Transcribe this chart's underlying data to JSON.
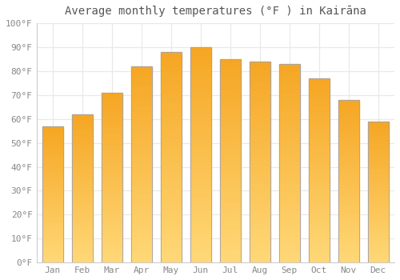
{
  "title": "Average monthly temperatures (°F ) in Kairāna",
  "months": [
    "Jan",
    "Feb",
    "Mar",
    "Apr",
    "May",
    "Jun",
    "Jul",
    "Aug",
    "Sep",
    "Oct",
    "Nov",
    "Dec"
  ],
  "values": [
    57,
    62,
    71,
    82,
    88,
    90,
    85,
    84,
    83,
    77,
    68,
    59
  ],
  "bar_color_top": "#F5A623",
  "bar_color_bottom": "#FFD878",
  "bar_border_color": "#a0a0b0",
  "ylim": [
    0,
    100
  ],
  "yticks": [
    0,
    10,
    20,
    30,
    40,
    50,
    60,
    70,
    80,
    90,
    100
  ],
  "ytick_labels": [
    "0°F",
    "10°F",
    "20°F",
    "30°F",
    "40°F",
    "50°F",
    "60°F",
    "70°F",
    "80°F",
    "90°F",
    "100°F"
  ],
  "bg_color": "#ffffff",
  "grid_color": "#e8e8e8",
  "title_fontsize": 10,
  "tick_fontsize": 8,
  "tick_color": "#888888",
  "title_color": "#555555"
}
